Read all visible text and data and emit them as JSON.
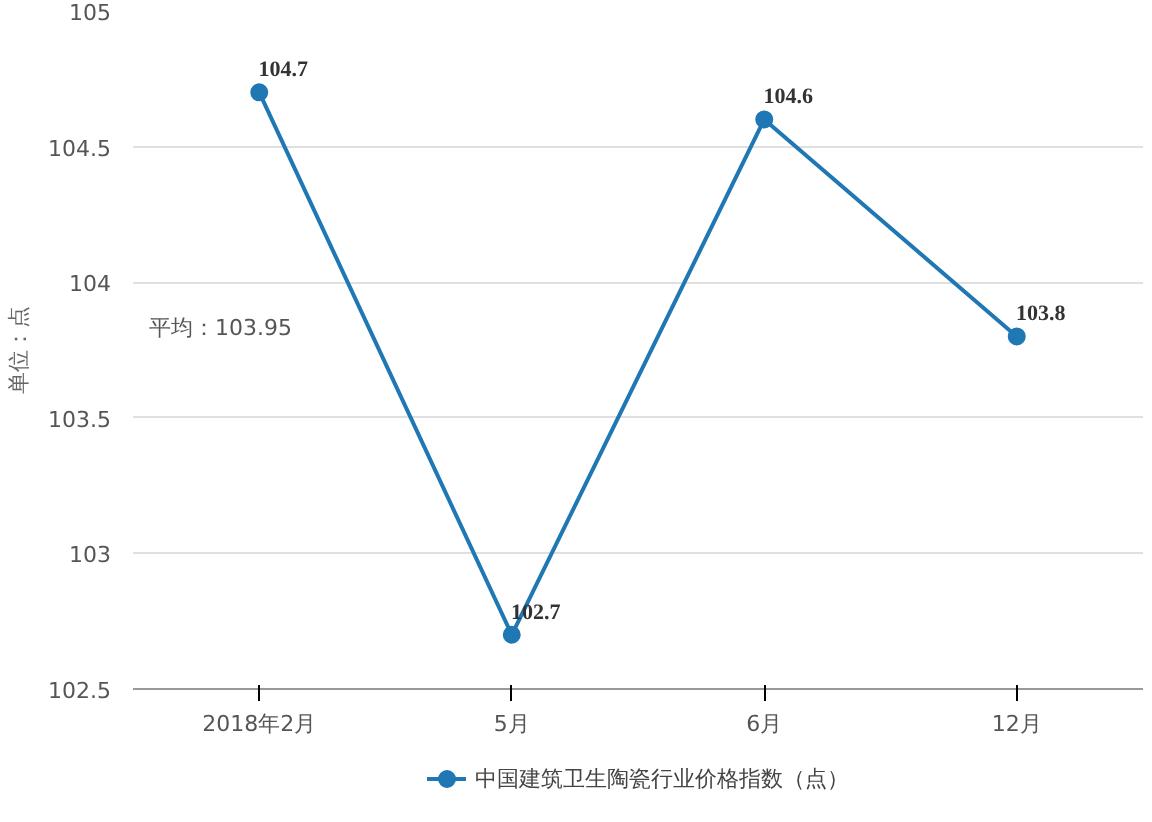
{
  "chart_data": {
    "type": "line",
    "ylabel": "单位：点",
    "categories": [
      "2018年2月",
      "5月",
      "6月",
      "12月"
    ],
    "series": [
      {
        "name": "中国建筑卫生陶瓷行业价格指数（点）",
        "color": "#1f77b4",
        "values": [
          104.7,
          102.7,
          104.6,
          103.8
        ]
      }
    ],
    "ylim": [
      102.5,
      105
    ],
    "yticks": [
      102.5,
      103,
      103.5,
      104,
      104.5,
      105
    ],
    "annotations": [
      "平均：103.95"
    ],
    "grid": "y",
    "legend": "bottom",
    "marker": "circle",
    "line_style": "solid",
    "data_labels": true
  }
}
